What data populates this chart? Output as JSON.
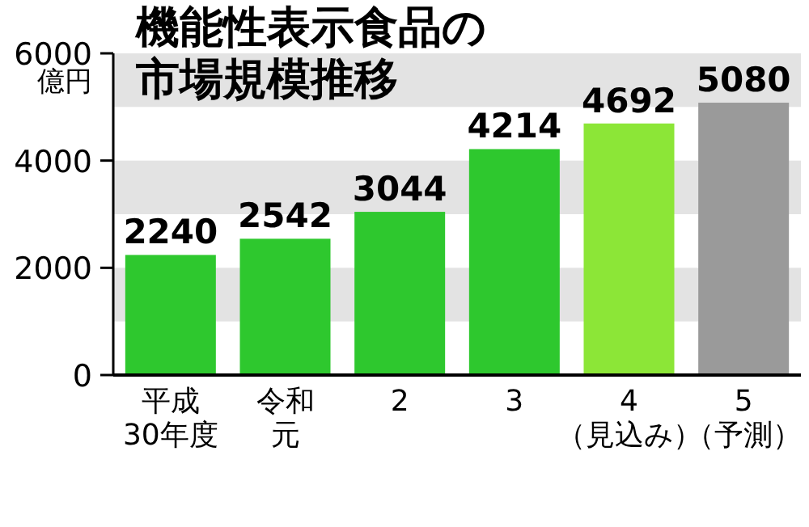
{
  "chart_data": {
    "type": "bar",
    "title": "機能性表示食品の市場規模推移",
    "ylabel": "億円",
    "categories": [
      "平成30年度",
      "令和元",
      "2",
      "3",
      "4（見込み）",
      "5（予測）"
    ],
    "values": [
      2240,
      2542,
      3044,
      4214,
      4692,
      5080
    ],
    "colors": [
      "#2ec82e",
      "#2ec82e",
      "#2ec82e",
      "#2ec82e",
      "#8ce637",
      "#9a9a9a"
    ],
    "ylim": [
      0,
      6000
    ],
    "yticks": [
      0,
      2000,
      4000,
      6000
    ],
    "data_labels": true,
    "bands": [
      {
        "axis": "y",
        "from": 1000,
        "to": 2000,
        "color": "#e3e3e3"
      },
      {
        "axis": "y",
        "from": 3000,
        "to": 4000,
        "color": "#e3e3e3"
      },
      {
        "axis": "y",
        "from": 5000,
        "to": 6000,
        "color": "#e3e3e3"
      }
    ]
  }
}
